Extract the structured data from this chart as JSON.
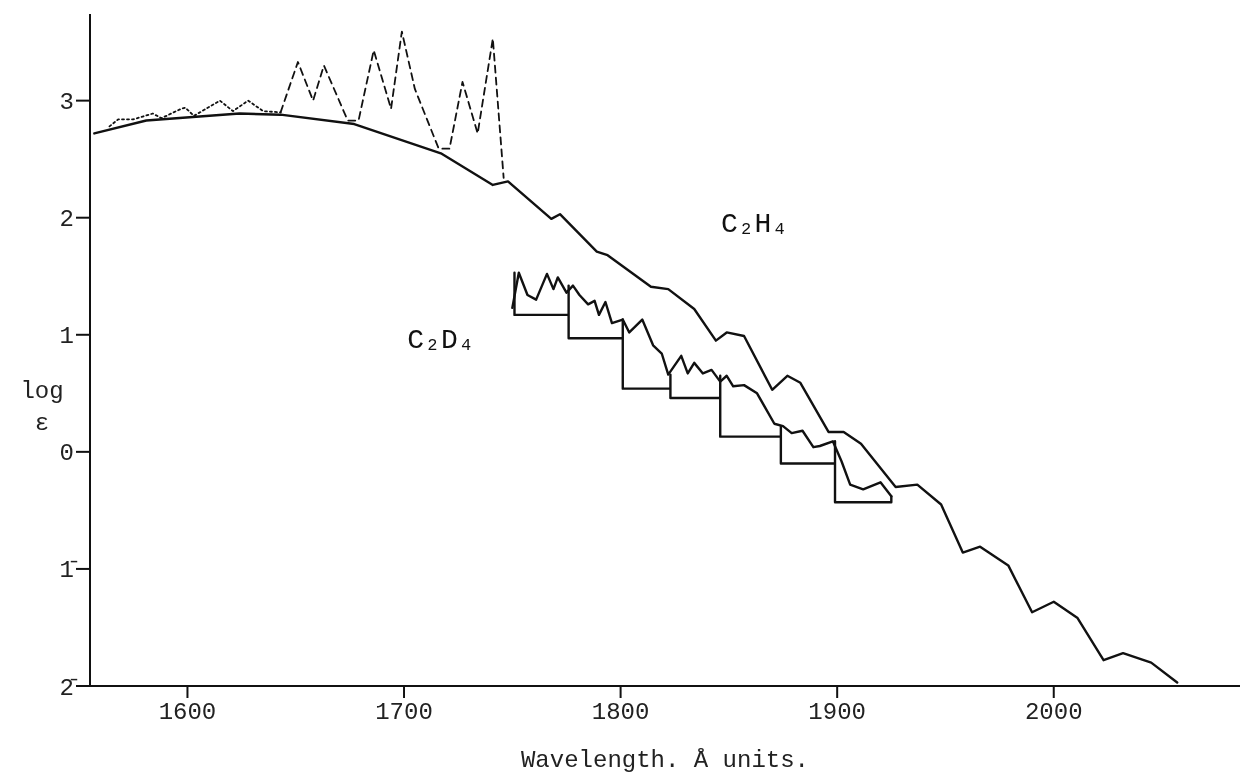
{
  "chart_data": {
    "type": "line",
    "xlabel": "Wavelength. Å units.",
    "ylabel": "log ε",
    "xlim": [
      1555,
      2086
    ],
    "ylim": [
      -2,
      3.74
    ],
    "xticks": [
      1600,
      1700,
      1800,
      1900,
      2000
    ],
    "yticks": [
      3,
      2,
      1,
      0,
      {
        "value": -1,
        "label": "1̄"
      },
      {
        "value": -2,
        "label": "2̄"
      }
    ],
    "grid": false,
    "legend": false,
    "series": [
      {
        "name": "C₂H₄",
        "color": "#111111",
        "line_style": "solid",
        "x": [
          1557,
          1581,
          1624,
          1643,
          1677,
          1717,
          1741,
          1748,
          1768,
          1772,
          1789,
          1794,
          1814,
          1822,
          1834,
          1844,
          1849,
          1857,
          1870,
          1877,
          1883,
          1896,
          1903,
          1911,
          1927,
          1937,
          1948,
          1958,
          1966,
          1979,
          1990,
          2000,
          2011,
          2023,
          2032,
          2045,
          2057
        ],
        "values": [
          2.72,
          2.83,
          2.89,
          2.88,
          2.8,
          2.55,
          2.28,
          2.31,
          1.99,
          2.03,
          1.71,
          1.68,
          1.41,
          1.39,
          1.22,
          0.95,
          1.02,
          0.99,
          0.53,
          0.65,
          0.59,
          0.17,
          0.17,
          0.07,
          -0.3,
          -0.28,
          -0.45,
          -0.86,
          -0.81,
          -0.97,
          -1.37,
          -1.28,
          -1.42,
          -1.78,
          -1.72,
          -1.8,
          -1.97
        ]
      },
      {
        "color": "#111111",
        "line_style": "dotted",
        "x": [
          1564,
          1568,
          1575,
          1584,
          1588,
          1597,
          1599,
          1603,
          1615,
          1621,
          1628,
          1635,
          1643
        ],
        "values": [
          2.78,
          2.84,
          2.84,
          2.89,
          2.85,
          2.93,
          2.94,
          2.87,
          3.0,
          2.91,
          3.0,
          2.91,
          2.9
        ]
      },
      {
        "color": "#111111",
        "line_style": "dashed",
        "x": [
          1643,
          1651,
          1658,
          1663,
          1674,
          1679,
          1686,
          1694,
          1699,
          1705,
          1716,
          1721,
          1727,
          1734,
          1741,
          1746
        ],
        "values": [
          2.9,
          3.33,
          3.0,
          3.3,
          2.83,
          2.83,
          3.43,
          2.93,
          3.59,
          3.1,
          2.59,
          2.59,
          3.16,
          2.72,
          3.53,
          2.34
        ]
      },
      {
        "name": "C₂D₄",
        "color": "#111111",
        "line_style": "solid",
        "x": [
          1750,
          1753,
          1757,
          1761,
          1766,
          1769,
          1771,
          1775,
          1778,
          1781,
          1785,
          1788,
          1790,
          1793,
          1796,
          1801,
          1804,
          1810,
          1815,
          1819,
          1822,
          1828,
          1831,
          1834,
          1838,
          1842,
          1846,
          1849,
          1852,
          1857,
          1863,
          1871,
          1875,
          1879,
          1884,
          1889,
          1892,
          1898,
          1902,
          1906,
          1912,
          1920,
          1925
        ],
        "values": [
          1.23,
          1.53,
          1.34,
          1.3,
          1.52,
          1.39,
          1.49,
          1.36,
          1.42,
          1.34,
          1.26,
          1.29,
          1.17,
          1.28,
          1.1,
          1.13,
          1.02,
          1.13,
          0.91,
          0.84,
          0.66,
          0.82,
          0.67,
          0.76,
          0.67,
          0.7,
          0.6,
          0.65,
          0.56,
          0.57,
          0.5,
          0.24,
          0.22,
          0.16,
          0.18,
          0.04,
          0.05,
          0.09,
          -0.08,
          -0.28,
          -0.32,
          -0.26,
          -0.38
        ]
      },
      {
        "color": "#111111",
        "line_style": "solid",
        "x": [
          1751,
          1751,
          1776,
          1776,
          1776,
          1801,
          1801,
          1801,
          1823,
          1823,
          1823,
          1846,
          1846,
          1846,
          1874,
          1874,
          1874,
          1899,
          1899,
          1899,
          1925,
          1925
        ],
        "values": [
          1.53,
          1.17,
          1.17,
          1.42,
          0.97,
          0.97,
          1.13,
          0.54,
          0.54,
          0.66,
          0.46,
          0.46,
          0.65,
          0.13,
          0.13,
          0.22,
          -0.1,
          -0.1,
          0.09,
          -0.43,
          -0.43,
          -0.38
        ]
      }
    ]
  }
}
